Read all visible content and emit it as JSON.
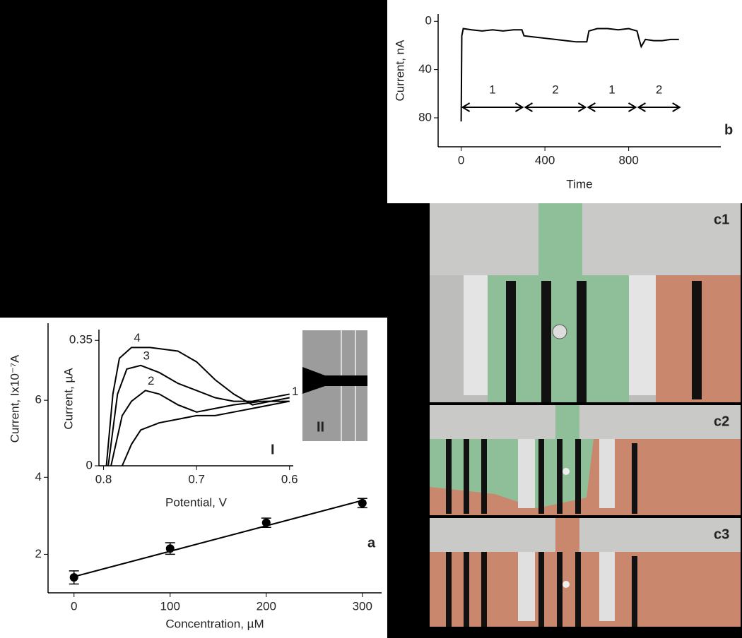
{
  "chart_data": [
    {
      "type": "line",
      "label": "b",
      "xlabel": "Time",
      "ylabel": "Current, nA",
      "color": "#000000",
      "x": [
        0,
        3,
        10,
        50,
        100,
        150,
        200,
        250,
        290,
        300,
        350,
        400,
        450,
        500,
        550,
        600,
        610,
        650,
        700,
        750,
        800,
        840,
        850,
        860,
        880,
        920,
        960,
        1000,
        1040
      ],
      "values": [
        83,
        12,
        6,
        7,
        8,
        7,
        8,
        7,
        7,
        12,
        13,
        14,
        15,
        16,
        17,
        17,
        8,
        6,
        6,
        7,
        6,
        8,
        15,
        21,
        15,
        16,
        16,
        15,
        15
      ],
      "xlim": [
        -110,
        1240
      ],
      "ylim": [
        -6,
        104
      ],
      "y_inverted": true,
      "xticks": [
        0,
        400,
        800
      ],
      "yticks": [
        0,
        40,
        80
      ],
      "annotations": [
        {
          "label": "1",
          "x": [
            0,
            300
          ]
        },
        {
          "label": "2",
          "x": [
            300,
            600
          ]
        },
        {
          "label": "1",
          "x": [
            600,
            840
          ]
        },
        {
          "label": "2",
          "x": [
            840,
            1050
          ]
        }
      ]
    },
    {
      "type": "scatter",
      "label": "a",
      "xlabel": "Concentration, µM",
      "ylabel": "Current, Ix10⁻⁷A",
      "color": "#000000",
      "x": [
        0,
        100,
        200,
        300
      ],
      "values": [
        1.4,
        2.15,
        2.82,
        3.33
      ],
      "errors": [
        0.17,
        0.15,
        0.12,
        0.12
      ],
      "fit": {
        "x": [
          0,
          300
        ],
        "values": [
          1.42,
          3.4
        ]
      },
      "xlim": [
        -27,
        320
      ],
      "ylim": [
        1,
        8
      ],
      "xticks": [
        0,
        100,
        200,
        300
      ],
      "yticks": [
        2,
        4,
        6
      ]
    },
    {
      "type": "line",
      "label": "I",
      "xlabel": "Potential, V",
      "ylabel": "Current, µA",
      "xlim": [
        0.805,
        0.596
      ],
      "ylim": [
        0,
        0.38
      ],
      "xticks": [
        0.8,
        0.7,
        0.6
      ],
      "yticks": [
        0,
        0.35
      ],
      "series": [
        {
          "name": "1",
          "color": "#000000",
          "x": [
            0.78,
            0.77,
            0.76,
            0.74,
            0.72,
            0.7,
            0.68,
            0.66,
            0.64,
            0.62,
            0.6
          ],
          "values": [
            0,
            0.06,
            0.1,
            0.12,
            0.13,
            0.14,
            0.14,
            0.15,
            0.16,
            0.17,
            0.18
          ]
        },
        {
          "name": "2",
          "color": "#000000",
          "x": [
            0.792,
            0.78,
            0.77,
            0.755,
            0.74,
            0.72,
            0.7,
            0.68,
            0.66,
            0.63,
            0.6
          ],
          "values": [
            0,
            0.14,
            0.18,
            0.21,
            0.2,
            0.17,
            0.15,
            0.16,
            0.17,
            0.18,
            0.18
          ]
        },
        {
          "name": "3",
          "color": "#000000",
          "x": [
            0.795,
            0.785,
            0.775,
            0.76,
            0.74,
            0.72,
            0.7,
            0.68,
            0.66,
            0.64,
            0.62,
            0.6
          ],
          "values": [
            0,
            0.2,
            0.27,
            0.28,
            0.26,
            0.23,
            0.21,
            0.19,
            0.18,
            0.18,
            0.19,
            0.2
          ]
        },
        {
          "name": "4",
          "color": "#000000",
          "x": [
            0.797,
            0.79,
            0.783,
            0.77,
            0.75,
            0.72,
            0.7,
            0.68,
            0.66,
            0.64,
            0.62,
            0.6
          ],
          "values": [
            0,
            0.2,
            0.3,
            0.33,
            0.33,
            0.32,
            0.29,
            0.24,
            0.2,
            0.17,
            0.18,
            0.19
          ]
        }
      ]
    }
  ],
  "inset": {
    "label": "II"
  },
  "photos": [
    {
      "label": "c1"
    },
    {
      "label": "c2"
    },
    {
      "label": "c3"
    }
  ]
}
